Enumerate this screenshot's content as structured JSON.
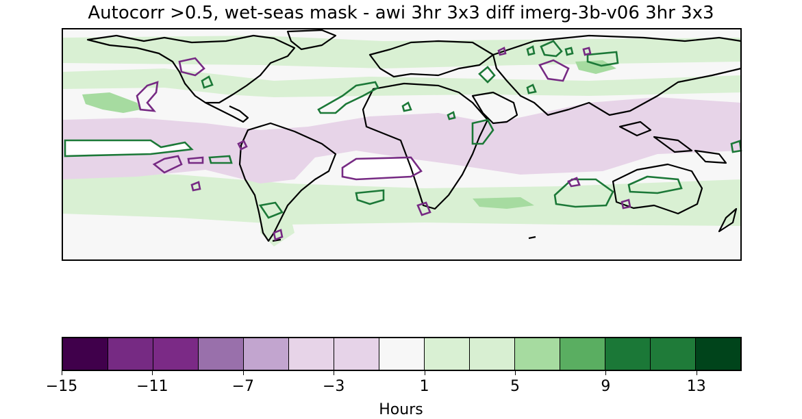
{
  "figure": {
    "title": "Autocorr >0.5, wet-seas mask - awi 3hr 3x3 diff imerg-3b-v06 3hr 3x3"
  },
  "colorbar": {
    "label": "Hours",
    "boundaries": [
      -15,
      -13,
      -11,
      -9,
      -7,
      -5,
      -3,
      -1,
      1,
      3,
      5,
      7,
      9,
      11,
      13,
      15
    ],
    "tick_values": [
      -15,
      -11,
      -7,
      -3,
      1,
      5,
      9,
      13
    ],
    "tick_labels": [
      "−15",
      "−11",
      "−7",
      "−3",
      "1",
      "5",
      "9",
      "13"
    ],
    "colors": [
      "#40004b",
      "#762a83",
      "#7b2a86",
      "#9970ab",
      "#c2a5cf",
      "#e7d4e8",
      "#e6d3e8",
      "#f7f7f7",
      "#d9f0d3",
      "#d8efd2",
      "#a6dba0",
      "#5aae61",
      "#1b7837",
      "#1f7b39",
      "#00441b"
    ]
  },
  "map": {
    "background_color": "#f7f7f7",
    "coastline_color": "#000000",
    "positive_contour_color": "#1b7837",
    "negative_contour_color": "#762a83"
  }
}
